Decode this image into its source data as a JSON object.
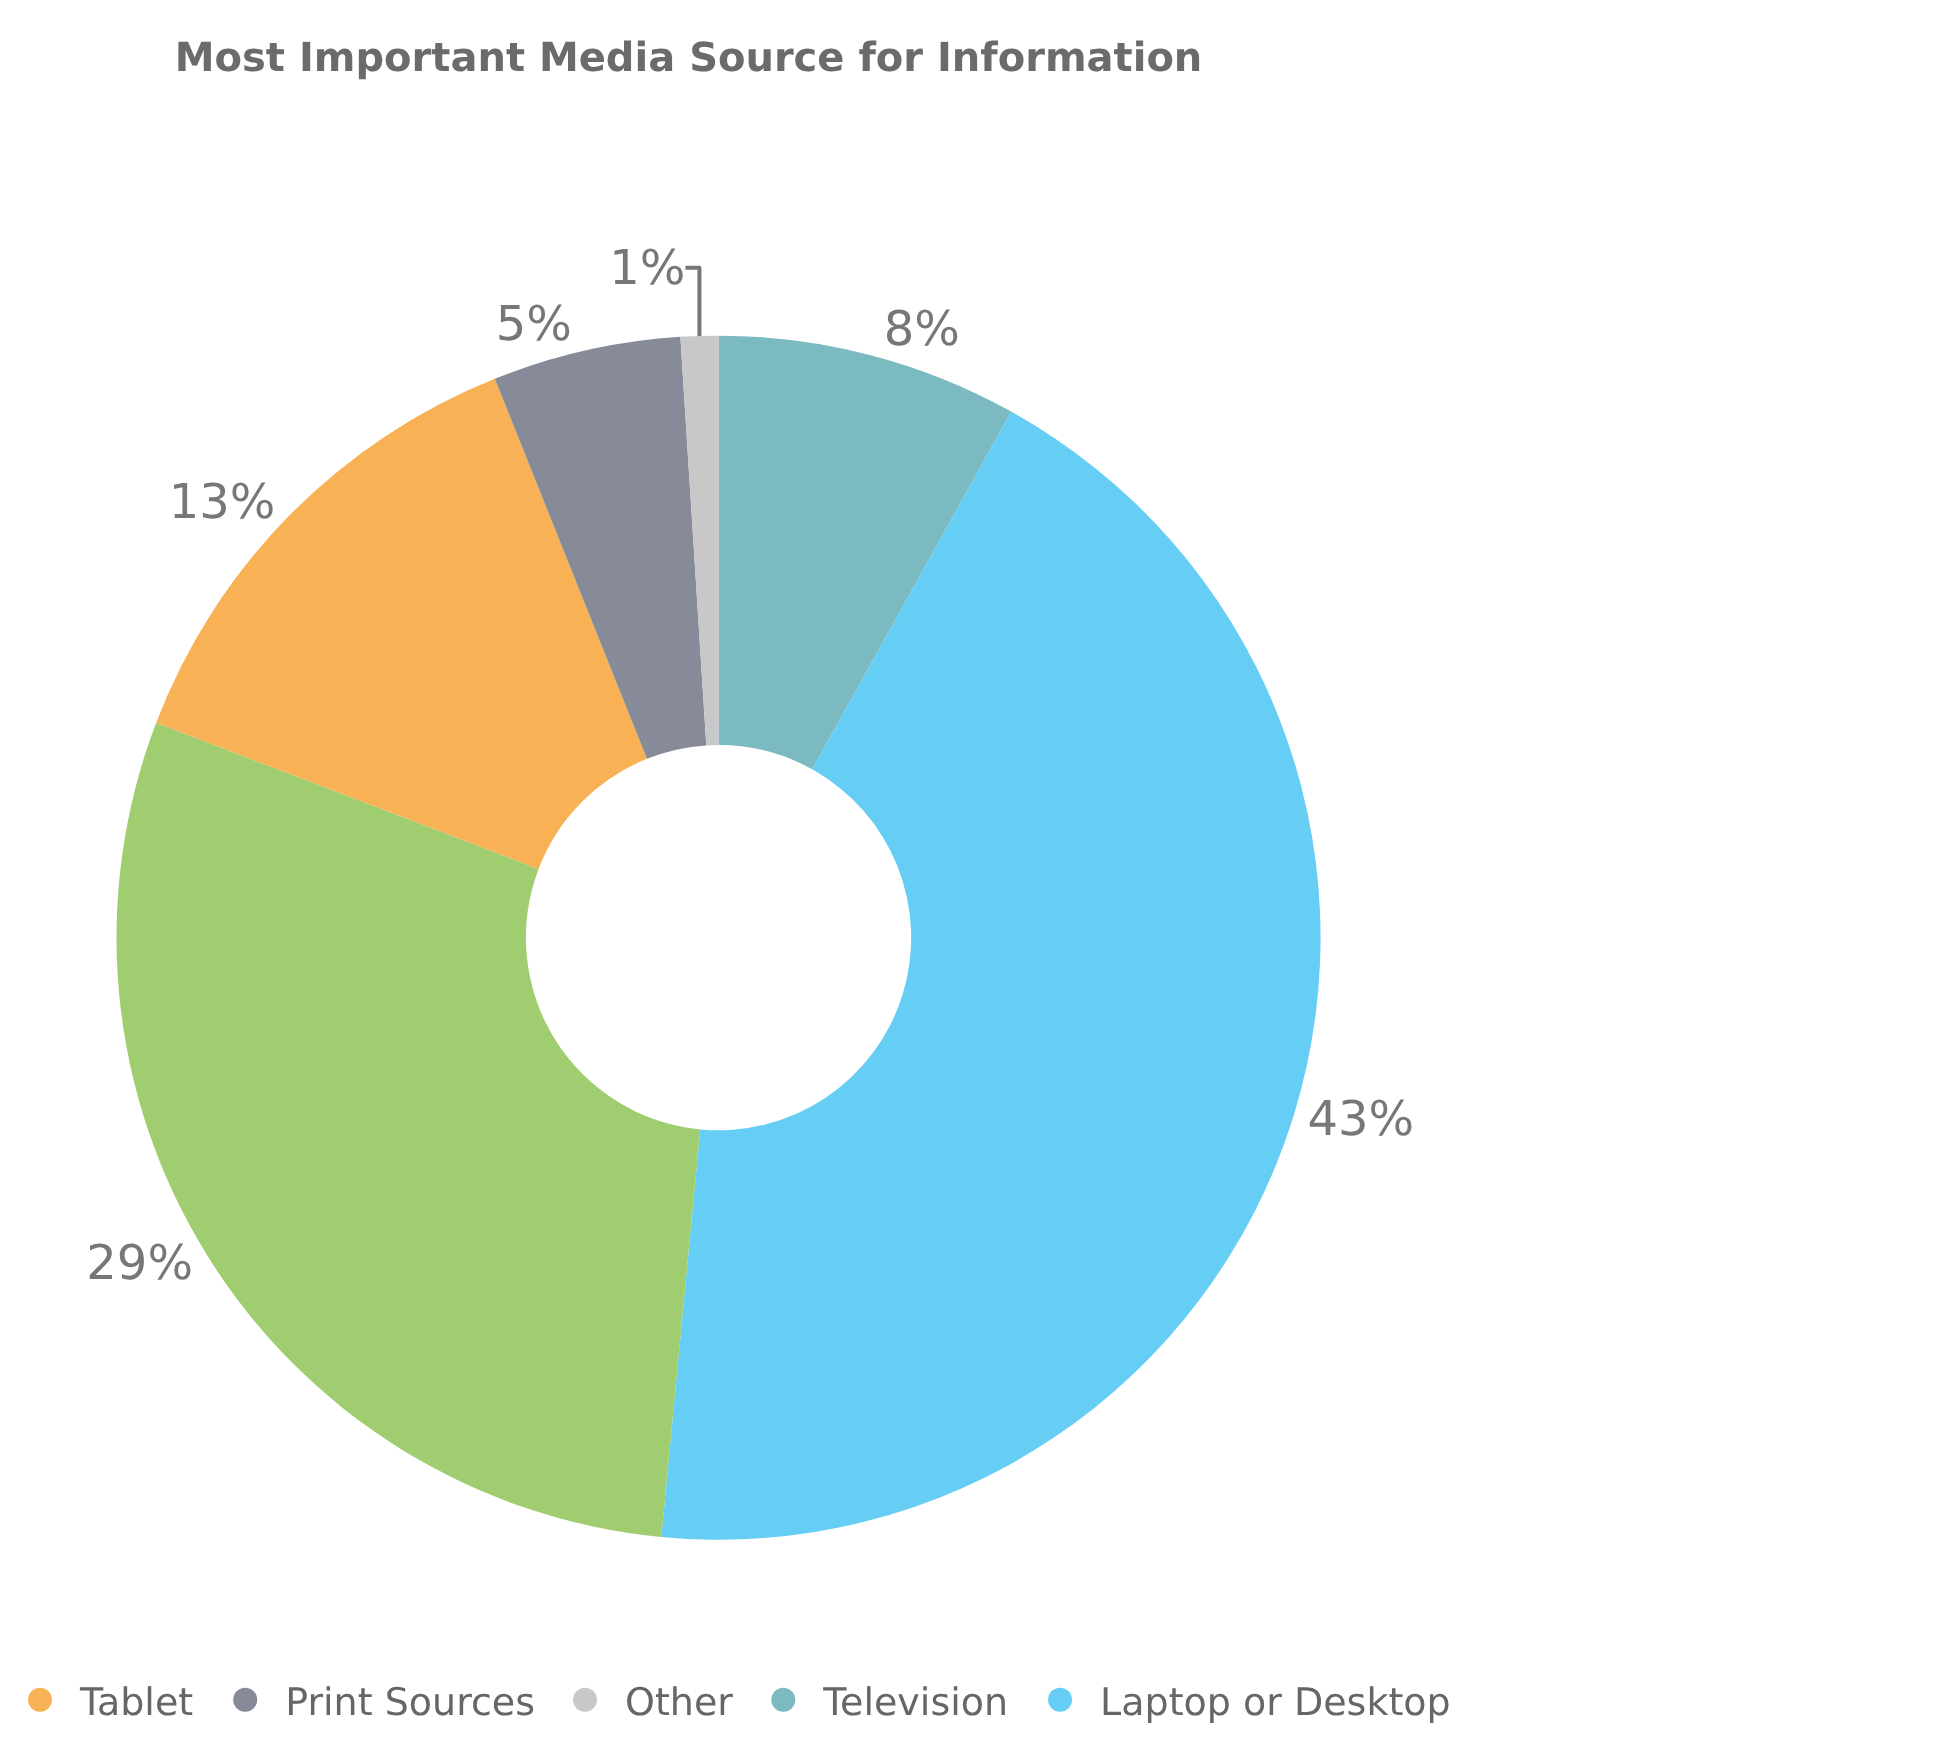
{
  "chart_data": {
    "type": "donut",
    "title": "Most Important Media Source for Information",
    "categories": [
      "Television",
      "Laptop or Desktop",
      null,
      "Tablet",
      "Print Sources",
      "Other"
    ],
    "values": [
      8,
      43,
      29,
      13,
      5,
      1
    ],
    "colors": [
      "#7bbac1",
      "#66cdf5",
      "#a0cd6f",
      "#f8b155",
      "#878a98",
      "#c8c8c8"
    ],
    "value_labels": [
      "8%",
      "43%",
      "29%",
      "13%",
      "5%",
      "1%"
    ],
    "legend": "bottom"
  }
}
